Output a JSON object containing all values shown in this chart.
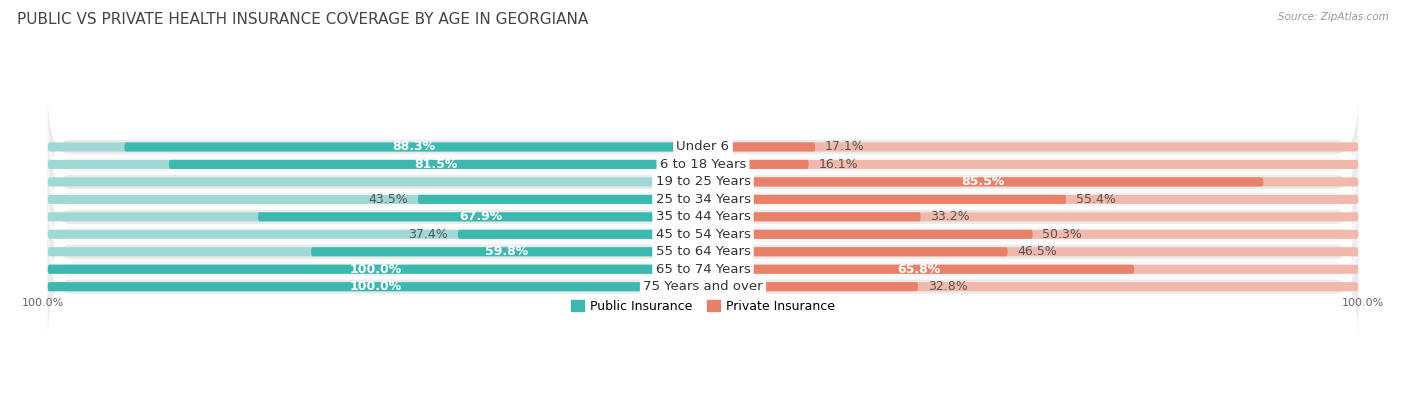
{
  "title": "PUBLIC VS PRIVATE HEALTH INSURANCE COVERAGE BY AGE IN GEORGIANA",
  "source": "Source: ZipAtlas.com",
  "categories": [
    "Under 6",
    "6 to 18 Years",
    "19 to 25 Years",
    "25 to 34 Years",
    "35 to 44 Years",
    "45 to 54 Years",
    "55 to 64 Years",
    "65 to 74 Years",
    "75 Years and over"
  ],
  "public_values": [
    88.3,
    81.5,
    0.0,
    43.5,
    67.9,
    37.4,
    59.8,
    100.0,
    100.0
  ],
  "private_values": [
    17.1,
    16.1,
    85.5,
    55.4,
    33.2,
    50.3,
    46.5,
    65.8,
    32.8
  ],
  "public_color": "#3db8b0",
  "private_color": "#e8806a",
  "public_color_light": "#a0d8d5",
  "private_color_light": "#f2b8ac",
  "row_bg_color_odd": "#ebebeb",
  "row_bg_color_even": "#f7f7f7",
  "max_value": 100.0,
  "title_fontsize": 11,
  "label_fontsize": 9,
  "category_fontsize": 9.5,
  "axis_fontsize": 8,
  "legend_fontsize": 9,
  "bar_height": 0.52,
  "figsize": [
    14.06,
    4.13
  ]
}
